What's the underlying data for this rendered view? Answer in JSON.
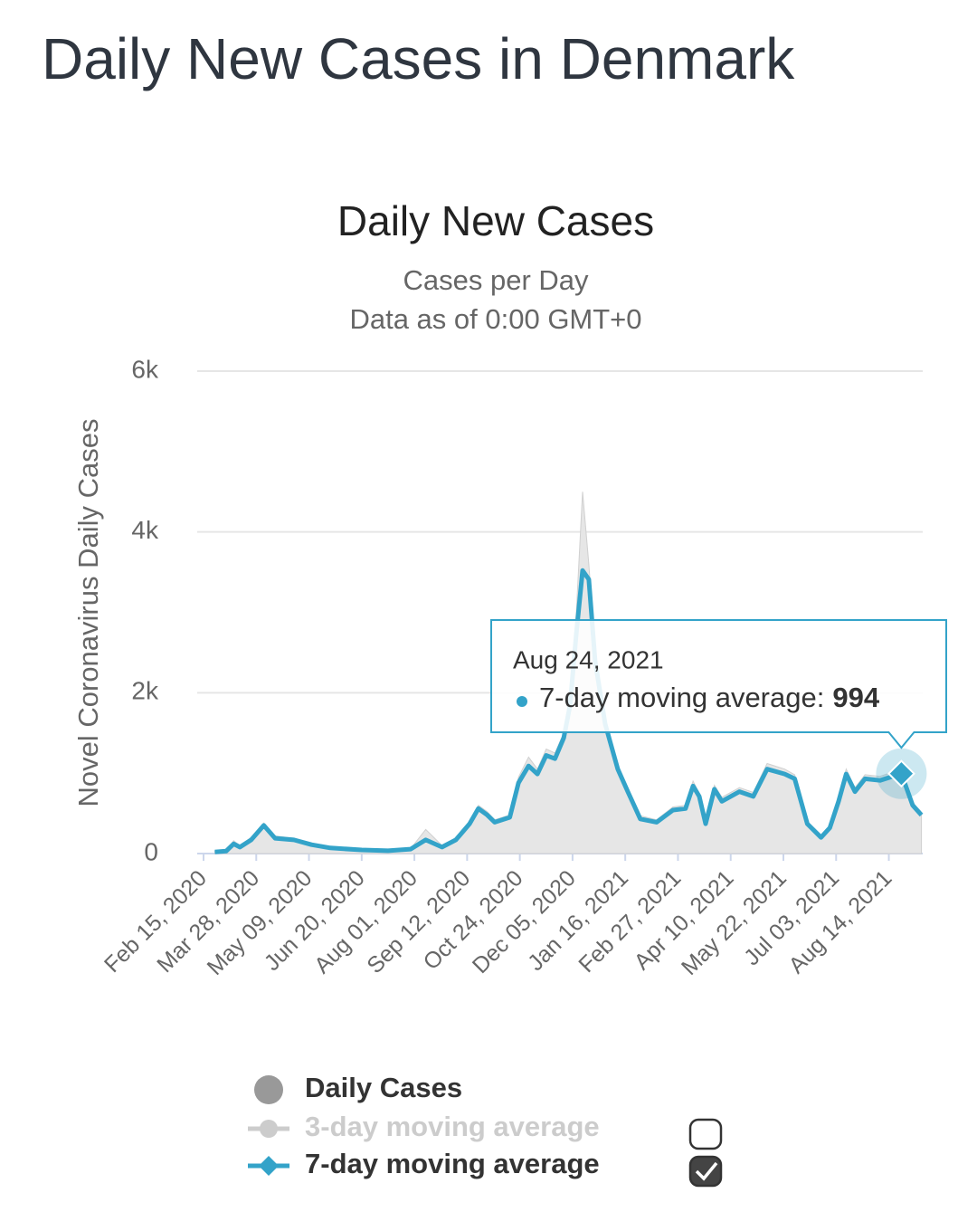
{
  "header": {
    "title": "Daily New Cases in Denmark"
  },
  "chart_data": {
    "type": "line",
    "title": "Daily New Cases",
    "subtitle": [
      "Cases per Day",
      "Data as of 0:00 GMT+0"
    ],
    "y_axis_label": "Novel Coronavirus Daily Cases",
    "xlim": [
      "2020-02-15",
      "2021-09-10"
    ],
    "xticks": [
      {
        "value": "2020-02-15",
        "label": "Feb 15, 2020"
      },
      {
        "value": "2020-03-28",
        "label": "Mar 28, 2020"
      },
      {
        "value": "2020-05-09",
        "label": "May 09, 2020"
      },
      {
        "value": "2020-06-20",
        "label": "Jun 20, 2020"
      },
      {
        "value": "2020-08-01",
        "label": "Aug 01, 2020"
      },
      {
        "value": "2020-09-12",
        "label": "Sep 12, 2020"
      },
      {
        "value": "2020-10-24",
        "label": "Oct 24, 2020"
      },
      {
        "value": "2020-12-05",
        "label": "Dec 05, 2020"
      },
      {
        "value": "2021-01-16",
        "label": "Jan 16, 2021"
      },
      {
        "value": "2021-02-27",
        "label": "Feb 27, 2021"
      },
      {
        "value": "2021-04-10",
        "label": "Apr 10, 2021"
      },
      {
        "value": "2021-05-22",
        "label": "May 22, 2021"
      },
      {
        "value": "2021-07-03",
        "label": "Jul 03, 2021"
      },
      {
        "value": "2021-08-14",
        "label": "Aug 14, 2021"
      }
    ],
    "ylim": [
      0,
      6000
    ],
    "yticks": [
      0,
      {
        "value": 2000,
        "label": "2k"
      },
      {
        "value": 4000,
        "label": "4k"
      },
      {
        "value": 6000,
        "label": "6k"
      }
    ],
    "grid": true,
    "x": [
      "2020-02-24",
      "2020-03-04",
      "2020-03-10",
      "2020-03-15",
      "2020-03-24",
      "2020-04-03",
      "2020-04-12",
      "2020-04-27",
      "2020-05-11",
      "2020-05-26",
      "2020-06-20",
      "2020-07-11",
      "2020-07-29",
      "2020-08-10",
      "2020-08-23",
      "2020-09-03",
      "2020-09-14",
      "2020-09-21",
      "2020-09-28",
      "2020-10-04",
      "2020-10-16",
      "2020-10-23",
      "2020-10-31",
      "2020-11-07",
      "2020-11-14",
      "2020-11-21",
      "2020-11-28",
      "2020-12-03",
      "2020-12-08",
      "2020-12-13",
      "2020-12-18",
      "2020-12-23",
      "2020-12-31",
      "2021-01-10",
      "2021-01-18",
      "2021-01-28",
      "2021-02-10",
      "2021-02-23",
      "2021-03-05",
      "2021-03-11",
      "2021-03-16",
      "2021-03-21",
      "2021-03-28",
      "2021-04-03",
      "2021-04-17",
      "2021-04-28",
      "2021-05-09",
      "2021-05-23",
      "2021-05-31",
      "2021-06-10",
      "2021-06-21",
      "2021-06-28",
      "2021-07-05",
      "2021-07-11",
      "2021-07-18",
      "2021-07-26",
      "2021-08-07",
      "2021-08-24",
      "2021-09-02",
      "2021-09-09"
    ],
    "series": [
      {
        "name": "Daily Cases",
        "color": "#e6e6e6",
        "marker_color": "#999999",
        "values": [
          30,
          40,
          160,
          100,
          200,
          380,
          220,
          190,
          130,
          80,
          50,
          40,
          60,
          300,
          100,
          190,
          400,
          600,
          520,
          420,
          480,
          950,
          1200,
          1050,
          1300,
          1250,
          1500,
          2000,
          3000,
          4500,
          3600,
          2500,
          1700,
          1100,
          820,
          470,
          420,
          580,
          600,
          900,
          750,
          400,
          850,
          700,
          820,
          760,
          1120,
          1050,
          980,
          400,
          220,
          340,
          700,
          1050,
          820,
          980,
          960,
          1050,
          640,
          500
        ]
      },
      {
        "name": "3-day moving average",
        "color": "#cccccc",
        "visible": false
      },
      {
        "name": "7-day moving average",
        "color": "#33a3c9",
        "visible": true,
        "values": [
          20,
          30,
          120,
          80,
          170,
          350,
          190,
          170,
          110,
          70,
          45,
          35,
          55,
          170,
          80,
          170,
          370,
          560,
          480,
          390,
          450,
          880,
          1090,
          990,
          1220,
          1180,
          1440,
          1840,
          2740,
          3520,
          3410,
          2390,
          1610,
          1050,
          770,
          430,
          390,
          540,
          560,
          840,
          710,
          370,
          800,
          650,
          770,
          710,
          1050,
          990,
          930,
          370,
          200,
          320,
          650,
          990,
          770,
          930,
          910,
          994,
          600,
          480
        ]
      }
    ],
    "tooltip": {
      "date": "2021-08-24",
      "date_label": "Aug 24, 2021",
      "label": "7-day moving average:",
      "value": 994
    }
  }
}
